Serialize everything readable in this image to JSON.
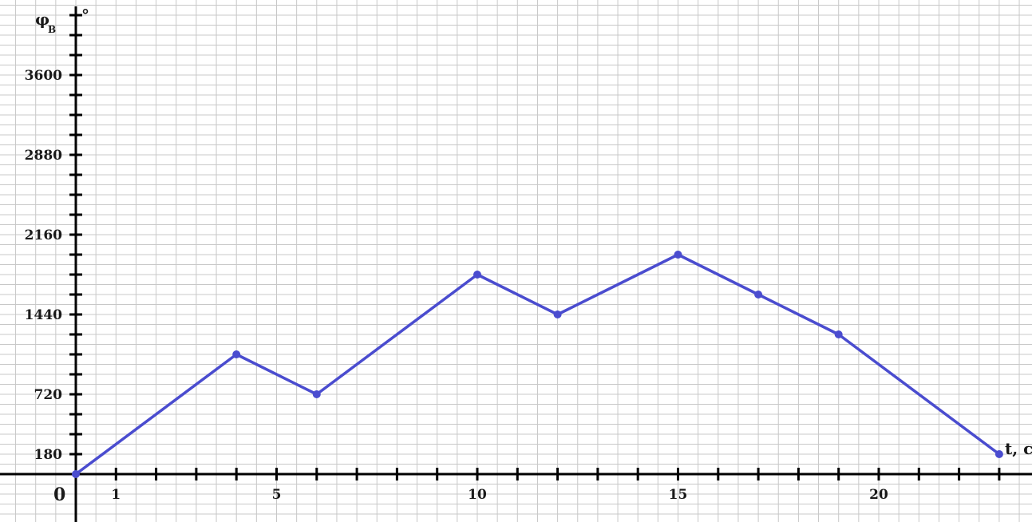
{
  "chart_data": {
    "type": "line",
    "title": "",
    "ylabel_main": "φ",
    "ylabel_sub": "В",
    "ylabel_unit": "°",
    "xlabel": "t, с",
    "origin_label": "0",
    "x_range": [
      0,
      23.2
    ],
    "y_range": [
      -360,
      4320
    ],
    "grid": true,
    "x_tick_labels": [
      {
        "value": 1,
        "text": "1"
      },
      {
        "value": 5,
        "text": "5"
      },
      {
        "value": 10,
        "text": "10"
      },
      {
        "value": 15,
        "text": "15"
      },
      {
        "value": 20,
        "text": "20"
      }
    ],
    "y_tick_labels": [
      {
        "value": 180,
        "text": "180"
      },
      {
        "value": 720,
        "text": "720"
      },
      {
        "value": 1440,
        "text": "1440"
      },
      {
        "value": 2160,
        "text": "2160"
      },
      {
        "value": 2880,
        "text": "2880"
      },
      {
        "value": 3600,
        "text": "3600"
      }
    ],
    "series": [
      {
        "color": "#4a4ccf",
        "x": [
          0,
          4,
          6,
          10,
          12,
          15,
          17,
          19,
          23
        ],
        "y": [
          0,
          1080,
          720,
          1800,
          1440,
          1980,
          1620,
          1260,
          180
        ]
      }
    ]
  }
}
